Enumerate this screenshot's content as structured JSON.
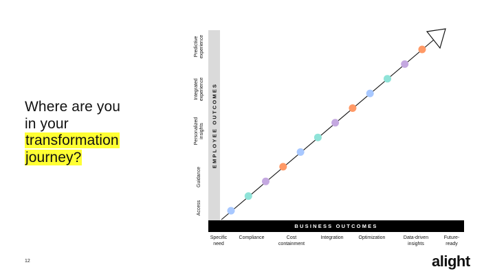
{
  "headline": {
    "line1": "Where are you",
    "line2": "in your",
    "line3": "transformation",
    "line4": "journey?"
  },
  "page_number": "12",
  "brand": {
    "logo_text": "alight"
  },
  "axes": {
    "y_title": "EMPLOYEE OUTCOMES",
    "x_title": "BUSINESS OUTCOMES"
  },
  "employee_levels": [
    {
      "line1": "Access",
      "line2": ""
    },
    {
      "line1": "Guidance",
      "line2": ""
    },
    {
      "line1": "Personalized",
      "line2": "insights"
    },
    {
      "line1": "Integrated",
      "line2": "experience"
    },
    {
      "line1": "Predictive",
      "line2": "experience"
    }
  ],
  "business_stages": [
    {
      "line1": "Specific",
      "line2": "need"
    },
    {
      "line1": "Compliance",
      "line2": ""
    },
    {
      "line1": "Cost",
      "line2": "containment"
    },
    {
      "line1": "Integration",
      "line2": ""
    },
    {
      "line1": "Optimization",
      "line2": ""
    },
    {
      "line1": "Data-driven",
      "line2": "insights"
    },
    {
      "line1": "Future-",
      "line2": "ready"
    }
  ],
  "dot_colors": [
    "#a8c8ff",
    "#8fe3d8",
    "#c4a8e0",
    "#ff9966",
    "#a8c8ff",
    "#8fe3d8",
    "#c4a8e0",
    "#ff9966",
    "#a8c8ff",
    "#8fe3d8",
    "#c4a8e0",
    "#ff9966"
  ],
  "colors": {
    "highlight": "#ffff33",
    "axis_bar_dark": "#000000",
    "axis_bar_light": "#dadada"
  }
}
